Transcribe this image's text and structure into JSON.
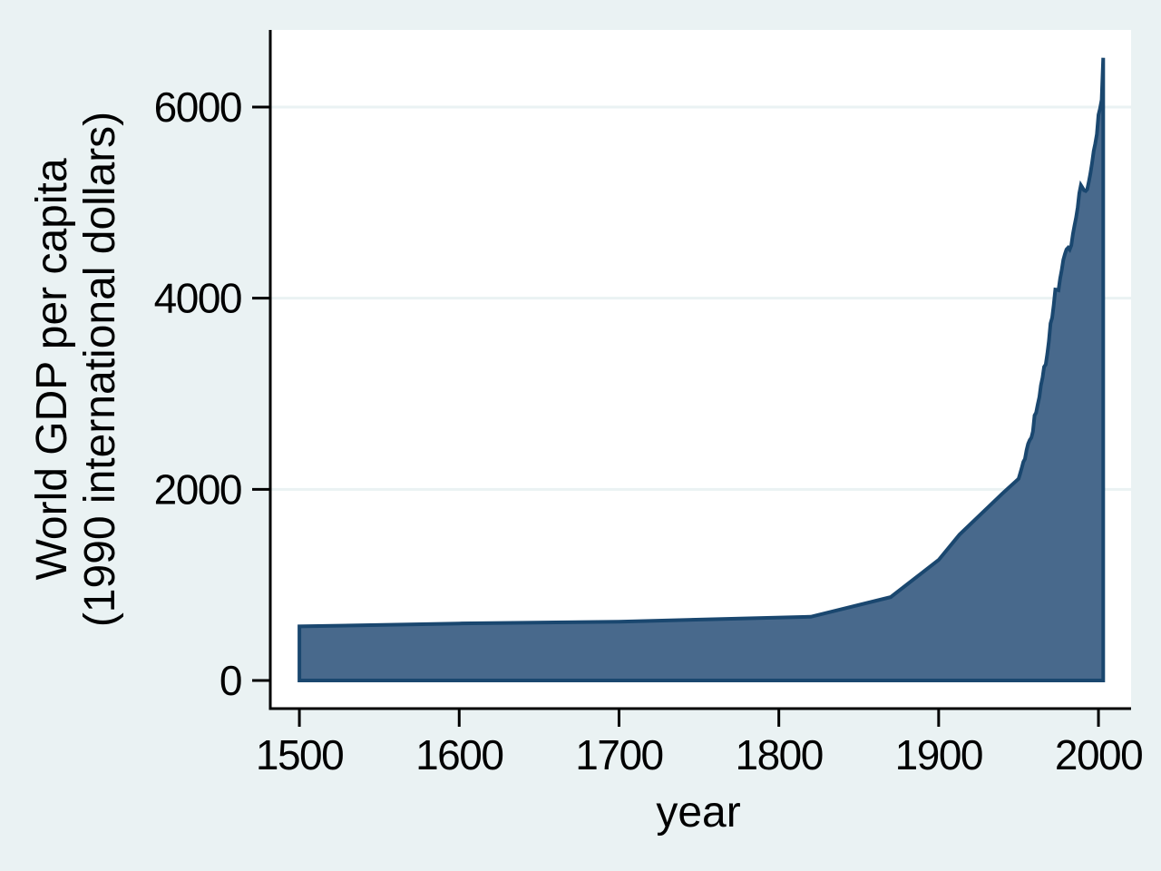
{
  "chart_data": {
    "type": "area",
    "title": "",
    "xlabel": "year",
    "ylabel_lines": [
      "World GDP per capita",
      "(1990 international dollars)"
    ],
    "x_ticks": [
      1500,
      1600,
      1700,
      1800,
      1900,
      2000
    ],
    "y_ticks": [
      0,
      2000,
      4000,
      6000
    ],
    "y_grid_values": [
      2000,
      4000,
      6000
    ],
    "xlim": [
      1481.8,
      2020.4
    ],
    "ylim": [
      -294,
      6807
    ],
    "grid": "horizontal",
    "legend": "none",
    "series": [
      {
        "name": "World GDP per capita (1990 international dollars)",
        "baseline": 0,
        "points": [
          [
            1500,
            566
          ],
          [
            1600,
            596
          ],
          [
            1700,
            615
          ],
          [
            1820,
            667
          ],
          [
            1870,
            873
          ],
          [
            1900,
            1262
          ],
          [
            1913,
            1526
          ],
          [
            1940,
            1958
          ],
          [
            1950,
            2111
          ],
          [
            1951,
            2165
          ],
          [
            1952,
            2225
          ],
          [
            1953,
            2287
          ],
          [
            1954,
            2318
          ],
          [
            1955,
            2412
          ],
          [
            1956,
            2476
          ],
          [
            1957,
            2516
          ],
          [
            1958,
            2542
          ],
          [
            1959,
            2606
          ],
          [
            1960,
            2773
          ],
          [
            1961,
            2802
          ],
          [
            1962,
            2888
          ],
          [
            1963,
            2965
          ],
          [
            1964,
            3088
          ],
          [
            1965,
            3168
          ],
          [
            1966,
            3281
          ],
          [
            1967,
            3306
          ],
          [
            1968,
            3421
          ],
          [
            1969,
            3551
          ],
          [
            1970,
            3736
          ],
          [
            1971,
            3796
          ],
          [
            1972,
            3927
          ],
          [
            1973,
            4091
          ],
          [
            1974,
            4089
          ],
          [
            1975,
            4083
          ],
          [
            1976,
            4206
          ],
          [
            1977,
            4292
          ],
          [
            1978,
            4401
          ],
          [
            1979,
            4462
          ],
          [
            1980,
            4511
          ],
          [
            1981,
            4529
          ],
          [
            1982,
            4509
          ],
          [
            1983,
            4553
          ],
          [
            1984,
            4672
          ],
          [
            1985,
            4759
          ],
          [
            1986,
            4844
          ],
          [
            1987,
            4952
          ],
          [
            1988,
            5096
          ],
          [
            1989,
            5183
          ],
          [
            1990,
            5157
          ],
          [
            1991,
            5129
          ],
          [
            1992,
            5122
          ],
          [
            1993,
            5140
          ],
          [
            1994,
            5221
          ],
          [
            1995,
            5307
          ],
          [
            1996,
            5416
          ],
          [
            1997,
            5540
          ],
          [
            1998,
            5617
          ],
          [
            1999,
            5715
          ],
          [
            2000,
            5920
          ],
          [
            2001,
            5985
          ],
          [
            2002,
            6076
          ],
          [
            2003,
            6516
          ]
        ]
      }
    ],
    "colors": {
      "background": "#eaf2f3",
      "plot_background": "#ffffff",
      "area_fill": "#48698c",
      "area_outline": "#1a476f",
      "gridline": "#eaf2f3",
      "axis": "#000000",
      "text": "#000000"
    }
  }
}
